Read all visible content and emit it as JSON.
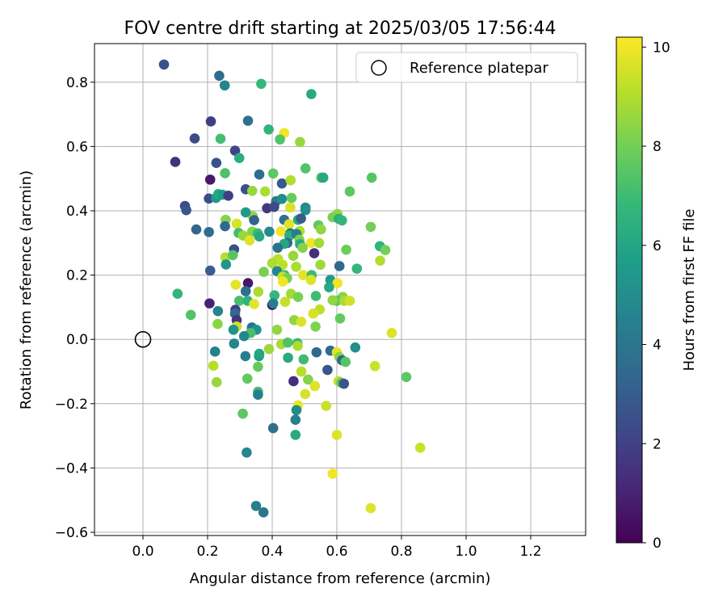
{
  "chart_data": {
    "type": "scatter",
    "title": "FOV centre drift starting at 2025/03/05 17:56:44",
    "xlabel": "Angular distance from reference (arcmin)",
    "ylabel": "Rotation from reference (arcmin)",
    "xlim": [
      -0.15,
      1.37
    ],
    "ylim": [
      -0.61,
      0.92
    ],
    "xticks": [
      0.0,
      0.2,
      0.4,
      0.6,
      0.8,
      1.0,
      1.2
    ],
    "xtick_labels": [
      "0.0",
      "0.2",
      "0.4",
      "0.6",
      "0.8",
      "1.0",
      "1.2"
    ],
    "yticks": [
      -0.6,
      -0.4,
      -0.2,
      0.0,
      0.2,
      0.4,
      0.6,
      0.8
    ],
    "ytick_labels": [
      "−0.6",
      "−0.4",
      "−0.2",
      "0.0",
      "0.2",
      "0.4",
      "0.6",
      "0.8"
    ],
    "grid": true,
    "legend": {
      "placement": "top-right",
      "label": "Reference platepar"
    },
    "reference_point": {
      "x": 0.0,
      "y": 0.0,
      "marker": "open-circle",
      "color": "#000000"
    },
    "colorbar": {
      "label": "Hours from first FF file",
      "range": [
        0,
        10.2
      ],
      "ticks": [
        0,
        2,
        4,
        6,
        8,
        10
      ],
      "tick_labels": [
        "0",
        "2",
        "4",
        "6",
        "8",
        "10"
      ],
      "colormap": "viridis",
      "stops": [
        "#440154",
        "#482878",
        "#3e4989",
        "#31688e",
        "#26828e",
        "#1f9e89",
        "#35b779",
        "#6ece58",
        "#b5de2b",
        "#fde725"
      ]
    },
    "points": [
      [
        0.065,
        0.855,
        2.6
      ],
      [
        0.236,
        0.82,
        3.6
      ],
      [
        0.253,
        0.79,
        4.6
      ],
      [
        0.366,
        0.795,
        6.8
      ],
      [
        0.521,
        0.763,
        6.2
      ],
      [
        0.325,
        0.68,
        3.9
      ],
      [
        0.21,
        0.678,
        1.9
      ],
      [
        0.389,
        0.653,
        6.6
      ],
      [
        0.437,
        0.642,
        10.0
      ],
      [
        0.424,
        0.622,
        7.4
      ],
      [
        0.486,
        0.614,
        8.6
      ],
      [
        0.16,
        0.625,
        2.3
      ],
      [
        0.24,
        0.624,
        7.1
      ],
      [
        0.285,
        0.587,
        2.1
      ],
      [
        0.298,
        0.564,
        6.4
      ],
      [
        0.1,
        0.552,
        1.4
      ],
      [
        0.227,
        0.549,
        2.6
      ],
      [
        0.503,
        0.532,
        7.4
      ],
      [
        0.254,
        0.517,
        7.3
      ],
      [
        0.36,
        0.513,
        3.6
      ],
      [
        0.403,
        0.516,
        7.6
      ],
      [
        0.552,
        0.503,
        7.2
      ],
      [
        0.558,
        0.503,
        6.1
      ],
      [
        0.708,
        0.503,
        7.5
      ],
      [
        0.208,
        0.497,
        0.7
      ],
      [
        0.43,
        0.485,
        2.9
      ],
      [
        0.457,
        0.495,
        9.0
      ],
      [
        0.318,
        0.467,
        2.5
      ],
      [
        0.338,
        0.462,
        8.6
      ],
      [
        0.378,
        0.46,
        8.9
      ],
      [
        0.64,
        0.46,
        7.6
      ],
      [
        0.13,
        0.415,
        2.4
      ],
      [
        0.134,
        0.402,
        2.7
      ],
      [
        0.204,
        0.438,
        2.4
      ],
      [
        0.226,
        0.44,
        5.4
      ],
      [
        0.233,
        0.452,
        6.1
      ],
      [
        0.246,
        0.45,
        5.6
      ],
      [
        0.264,
        0.447,
        1.9
      ],
      [
        0.412,
        0.43,
        4.2
      ],
      [
        0.43,
        0.437,
        5.0
      ],
      [
        0.46,
        0.44,
        7.8
      ],
      [
        0.456,
        0.41,
        9.6
      ],
      [
        0.384,
        0.408,
        1.6
      ],
      [
        0.406,
        0.412,
        2.3
      ],
      [
        0.503,
        0.41,
        4.6
      ],
      [
        0.503,
        0.402,
        5.1
      ],
      [
        0.602,
        0.39,
        8.5
      ],
      [
        0.587,
        0.38,
        8.1
      ],
      [
        0.606,
        0.375,
        6.4
      ],
      [
        0.616,
        0.37,
        6.7
      ],
      [
        0.256,
        0.372,
        8.3
      ],
      [
        0.34,
        0.383,
        8.5
      ],
      [
        0.318,
        0.395,
        5.6
      ],
      [
        0.344,
        0.371,
        3.2
      ],
      [
        0.437,
        0.372,
        3.8
      ],
      [
        0.48,
        0.372,
        6.2
      ],
      [
        0.489,
        0.376,
        3.0
      ],
      [
        0.452,
        0.358,
        9.7
      ],
      [
        0.543,
        0.355,
        7.7
      ],
      [
        0.705,
        0.35,
        8.0
      ],
      [
        0.254,
        0.352,
        3.4
      ],
      [
        0.29,
        0.36,
        9.6
      ],
      [
        0.165,
        0.342,
        3.4
      ],
      [
        0.204,
        0.334,
        3.6
      ],
      [
        0.296,
        0.331,
        7.1
      ],
      [
        0.338,
        0.335,
        8.3
      ],
      [
        0.355,
        0.33,
        6.9
      ],
      [
        0.391,
        0.335,
        4.9
      ],
      [
        0.427,
        0.336,
        10.0
      ],
      [
        0.456,
        0.33,
        4.2
      ],
      [
        0.485,
        0.337,
        9.0
      ],
      [
        0.551,
        0.342,
        8.5
      ],
      [
        0.31,
        0.323,
        8.6
      ],
      [
        0.33,
        0.308,
        9.7
      ],
      [
        0.36,
        0.32,
        6.1
      ],
      [
        0.453,
        0.322,
        6.4
      ],
      [
        0.475,
        0.328,
        4.4
      ],
      [
        0.484,
        0.31,
        8.2
      ],
      [
        0.447,
        0.3,
        3.4
      ],
      [
        0.437,
        0.297,
        6.0
      ],
      [
        0.486,
        0.296,
        6.1
      ],
      [
        0.52,
        0.3,
        10.0
      ],
      [
        0.545,
        0.3,
        8.8
      ],
      [
        0.733,
        0.29,
        6.6
      ],
      [
        0.75,
        0.278,
        8.0
      ],
      [
        0.282,
        0.28,
        2.5
      ],
      [
        0.417,
        0.285,
        3.9
      ],
      [
        0.494,
        0.285,
        8.3
      ],
      [
        0.629,
        0.279,
        7.9
      ],
      [
        0.53,
        0.268,
        1.4
      ],
      [
        0.255,
        0.255,
        9.1
      ],
      [
        0.278,
        0.262,
        7.5
      ],
      [
        0.465,
        0.26,
        8.6
      ],
      [
        0.418,
        0.25,
        9.2
      ],
      [
        0.4,
        0.237,
        8.9
      ],
      [
        0.734,
        0.245,
        9.0
      ],
      [
        0.257,
        0.233,
        5.3
      ],
      [
        0.432,
        0.232,
        9.2
      ],
      [
        0.549,
        0.232,
        8.7
      ],
      [
        0.608,
        0.228,
        3.4
      ],
      [
        0.374,
        0.21,
        8.1
      ],
      [
        0.474,
        0.226,
        8.9
      ],
      [
        0.662,
        0.22,
        6.7
      ],
      [
        0.208,
        0.214,
        3.0
      ],
      [
        0.415,
        0.212,
        4.7
      ],
      [
        0.438,
        0.2,
        7.0
      ],
      [
        0.496,
        0.2,
        9.8
      ],
      [
        0.522,
        0.2,
        7.0
      ],
      [
        0.432,
        0.195,
        9.3
      ],
      [
        0.446,
        0.19,
        8.1
      ],
      [
        0.52,
        0.185,
        9.7
      ],
      [
        0.58,
        0.185,
        5.5
      ],
      [
        0.325,
        0.175,
        0.7
      ],
      [
        0.287,
        0.17,
        9.8
      ],
      [
        0.602,
        0.175,
        10.0
      ],
      [
        0.433,
        0.18,
        10.0
      ],
      [
        0.576,
        0.162,
        6.1
      ],
      [
        0.318,
        0.15,
        3.7
      ],
      [
        0.357,
        0.148,
        8.9
      ],
      [
        0.107,
        0.142,
        6.7
      ],
      [
        0.458,
        0.142,
        8.8
      ],
      [
        0.407,
        0.137,
        6.8
      ],
      [
        0.48,
        0.132,
        8.1
      ],
      [
        0.535,
        0.135,
        7.0
      ],
      [
        0.618,
        0.132,
        8.3
      ],
      [
        0.6,
        0.12,
        7.6
      ],
      [
        0.587,
        0.122,
        8.5
      ],
      [
        0.623,
        0.12,
        8.9
      ],
      [
        0.64,
        0.12,
        9.5
      ],
      [
        0.298,
        0.12,
        7.2
      ],
      [
        0.324,
        0.12,
        6.6
      ],
      [
        0.44,
        0.117,
        9.3
      ],
      [
        0.206,
        0.112,
        1.0
      ],
      [
        0.344,
        0.11,
        9.8
      ],
      [
        0.4,
        0.107,
        0.7
      ],
      [
        0.403,
        0.112,
        4.4
      ],
      [
        0.286,
        0.092,
        1.9
      ],
      [
        0.232,
        0.088,
        4.6
      ],
      [
        0.547,
        0.093,
        9.2
      ],
      [
        0.285,
        0.08,
        3.4
      ],
      [
        0.148,
        0.076,
        7.4
      ],
      [
        0.527,
        0.08,
        9.6
      ],
      [
        0.61,
        0.065,
        7.7
      ],
      [
        0.29,
        0.06,
        1.5
      ],
      [
        0.468,
        0.06,
        8.5
      ],
      [
        0.49,
        0.055,
        9.7
      ],
      [
        0.231,
        0.048,
        8.4
      ],
      [
        0.29,
        0.04,
        9.4
      ],
      [
        0.534,
        0.04,
        8.2
      ],
      [
        0.337,
        0.037,
        3.8
      ],
      [
        0.351,
        0.03,
        5.2
      ],
      [
        0.28,
        0.03,
        5.2
      ],
      [
        0.415,
        0.03,
        8.5
      ],
      [
        0.333,
        0.02,
        7.2
      ],
      [
        0.313,
        0.01,
        4.7
      ],
      [
        0.77,
        0.02,
        9.7
      ],
      [
        0.282,
        -0.013,
        4.7
      ],
      [
        0.428,
        -0.015,
        8.9
      ],
      [
        0.448,
        -0.01,
        7.3
      ],
      [
        0.478,
        -0.012,
        6.7
      ],
      [
        0.479,
        -0.02,
        8.9
      ],
      [
        0.39,
        -0.03,
        8.7
      ],
      [
        0.223,
        -0.038,
        4.5
      ],
      [
        0.537,
        -0.04,
        3.4
      ],
      [
        0.58,
        -0.035,
        3.5
      ],
      [
        0.6,
        -0.04,
        9.8
      ],
      [
        0.657,
        -0.025,
        5.0
      ],
      [
        0.317,
        -0.052,
        4.4
      ],
      [
        0.359,
        -0.052,
        5.5
      ],
      [
        0.36,
        -0.045,
        6.0
      ],
      [
        0.449,
        -0.057,
        6.2
      ],
      [
        0.497,
        -0.062,
        7.0
      ],
      [
        0.608,
        -0.055,
        8.3
      ],
      [
        0.616,
        -0.065,
        3.4
      ],
      [
        0.627,
        -0.07,
        7.5
      ],
      [
        0.218,
        -0.082,
        9.1
      ],
      [
        0.356,
        -0.085,
        7.8
      ],
      [
        0.571,
        -0.095,
        2.7
      ],
      [
        0.718,
        -0.083,
        9.4
      ],
      [
        0.49,
        -0.1,
        9.1
      ],
      [
        0.323,
        -0.122,
        7.7
      ],
      [
        0.466,
        -0.13,
        1.3
      ],
      [
        0.511,
        -0.125,
        8.3
      ],
      [
        0.605,
        -0.13,
        9.3
      ],
      [
        0.614,
        -0.135,
        7.5
      ],
      [
        0.622,
        -0.138,
        2.7
      ],
      [
        0.815,
        -0.117,
        7.6
      ],
      [
        0.228,
        -0.133,
        8.6
      ],
      [
        0.532,
        -0.145,
        9.7
      ],
      [
        0.356,
        -0.163,
        7.0
      ],
      [
        0.356,
        -0.172,
        4.4
      ],
      [
        0.502,
        -0.17,
        9.6
      ],
      [
        0.48,
        -0.205,
        9.9
      ],
      [
        0.567,
        -0.207,
        9.4
      ],
      [
        0.475,
        -0.22,
        4.9
      ],
      [
        0.309,
        -0.231,
        7.6
      ],
      [
        0.472,
        -0.25,
        4.4
      ],
      [
        0.403,
        -0.276,
        3.8
      ],
      [
        0.472,
        -0.297,
        6.2
      ],
      [
        0.6,
        -0.297,
        9.7
      ],
      [
        0.321,
        -0.352,
        4.7
      ],
      [
        0.858,
        -0.337,
        9.4
      ],
      [
        0.587,
        -0.418,
        10.0
      ],
      [
        0.35,
        -0.518,
        4.4
      ],
      [
        0.373,
        -0.538,
        4.0
      ],
      [
        0.705,
        -0.525,
        9.7
      ]
    ]
  }
}
